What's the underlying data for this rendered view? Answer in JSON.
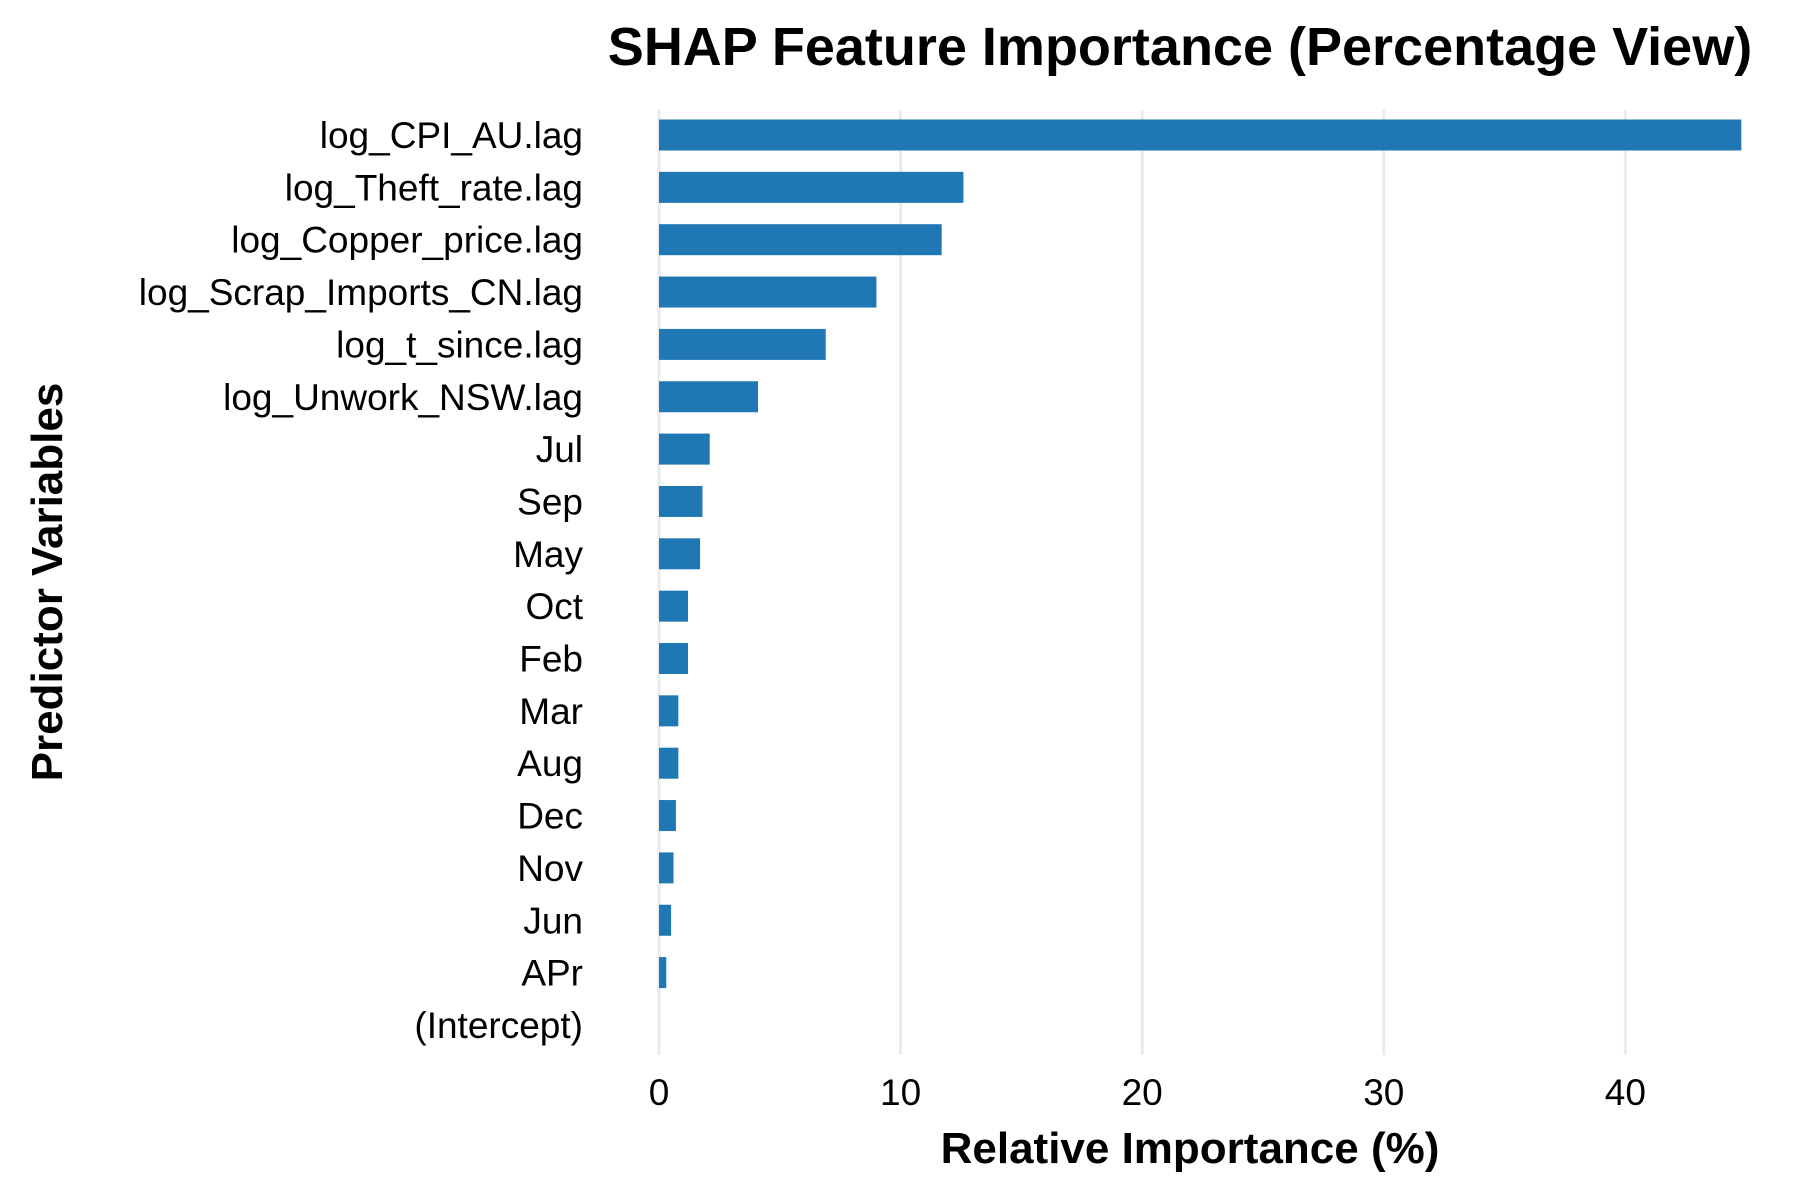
{
  "chart_data": {
    "type": "bar",
    "orientation": "horizontal",
    "title": "SHAP Feature Importance (Percentage View)",
    "xlabel": "Relative Importance (%)",
    "ylabel": "Predictor Variables",
    "categories": [
      "log_CPI_AU.lag",
      "log_Theft_rate.lag",
      "log_Copper_price.lag",
      "log_Scrap_Imports_CN.lag",
      "log_t_since.lag",
      "log_Unwork_NSW.lag",
      "Jul",
      "Sep",
      "May",
      "Oct",
      "Feb",
      "Mar",
      "Aug",
      "Dec",
      "Nov",
      "Jun",
      "APr",
      "(Intercept)"
    ],
    "values": [
      44.8,
      12.6,
      11.7,
      9.0,
      6.9,
      4.1,
      2.1,
      1.8,
      1.7,
      1.2,
      1.2,
      0.8,
      0.8,
      0.7,
      0.6,
      0.5,
      0.3,
      0.0
    ],
    "xlim": [
      0,
      46.4
    ],
    "xticks": [
      0,
      10,
      20,
      30,
      40
    ],
    "xtick_labels": [
      "0",
      "10",
      "20",
      "30",
      "40"
    ],
    "grid": true,
    "bar_color": "#1f77b4",
    "gridline_color": "#ebebeb",
    "legend": "none"
  }
}
